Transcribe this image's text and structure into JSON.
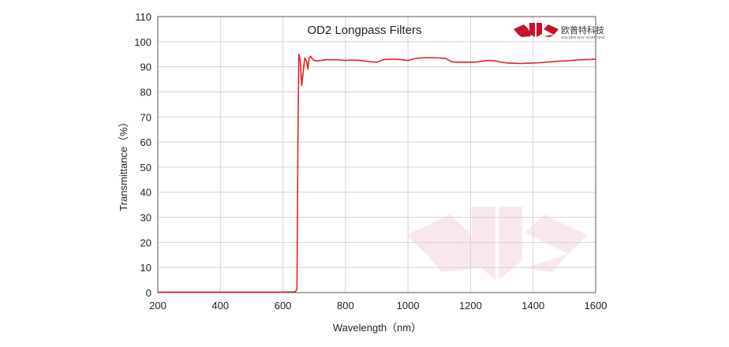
{
  "brand": {
    "name_cn": "欧普特科技",
    "name_en": "GOLDEN WAY SCIENTIFIC",
    "logo_color": "#c8102e"
  },
  "chart_data": {
    "type": "line",
    "title": "OD2  Longpass Filters",
    "xlabel": "Wavelength（nm）",
    "ylabel": "Transmittance（%）",
    "xlim": [
      200,
      1600
    ],
    "ylim": [
      0,
      110
    ],
    "xticks": [
      200,
      400,
      600,
      800,
      1000,
      1200,
      1400,
      1600
    ],
    "yticks": [
      0,
      10,
      20,
      30,
      40,
      50,
      60,
      70,
      80,
      90,
      100,
      110
    ],
    "grid": {
      "vertical": true,
      "horizontal": true
    },
    "series": [
      {
        "color": "#e8202a",
        "x": [
          200,
          400,
          600,
          640,
          645,
          646,
          648,
          651,
          655,
          660,
          665,
          670,
          676,
          680,
          684,
          688,
          692,
          696,
          700,
          710,
          720,
          740,
          760,
          780,
          800,
          820,
          840,
          860,
          880,
          900,
          920,
          940,
          960,
          980,
          1000,
          1020,
          1040,
          1060,
          1080,
          1100,
          1120,
          1140,
          1160,
          1180,
          1200,
          1220,
          1240,
          1260,
          1280,
          1300,
          1320,
          1340,
          1360,
          1380,
          1400,
          1420,
          1440,
          1460,
          1480,
          1500,
          1520,
          1540,
          1560,
          1580,
          1600
        ],
        "y": [
          0.2,
          0.2,
          0.2,
          0.3,
          1.5,
          20,
          60,
          95,
          93,
          82.5,
          88,
          93.5,
          92,
          89,
          93.5,
          94.2,
          93.5,
          93,
          92.5,
          92.3,
          92.5,
          92.8,
          92.8,
          92.7,
          92.5,
          92.7,
          92.6,
          92.3,
          92,
          91.8,
          92.8,
          93,
          93,
          92.8,
          92.5,
          93.2,
          93.5,
          93.6,
          93.6,
          93.5,
          93.3,
          92,
          91.8,
          91.8,
          91.8,
          91.9,
          92.3,
          92.5,
          92.3,
          91.8,
          91.5,
          91.4,
          91.3,
          91.4,
          91.5,
          91.6,
          91.8,
          92,
          92.2,
          92.3,
          92.5,
          92.7,
          92.8,
          92.9,
          93
        ]
      }
    ]
  }
}
